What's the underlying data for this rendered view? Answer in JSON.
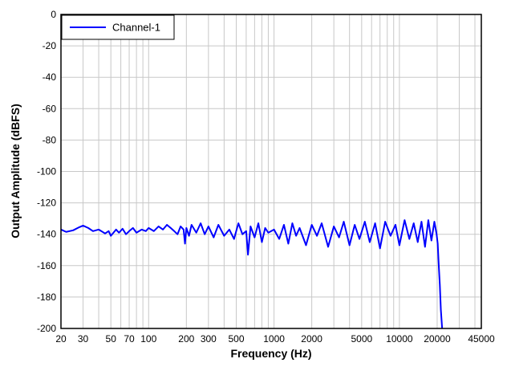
{
  "chart_data": {
    "type": "line",
    "xlabel": "Frequency (Hz)",
    "ylabel": "Output Amplitude (dBFS)",
    "x_scale": "log",
    "xlim": [
      20,
      45000
    ],
    "ylim": [
      -200,
      0
    ],
    "grid": true,
    "legend_position": "top-left",
    "x_tick_labels": [
      "20",
      "30",
      "50",
      "70",
      "100",
      "200",
      "300",
      "500",
      "1000",
      "2000",
      "5000",
      "10000",
      "20000",
      "45000"
    ],
    "y_tick_labels": [
      "0",
      "-20",
      "-40",
      "-60",
      "-80",
      "-100",
      "-120",
      "-140",
      "-160",
      "-180",
      "-200"
    ],
    "series": [
      {
        "name": "Channel-1",
        "color": "#0000ff",
        "x": [
          20,
          22,
          25,
          28,
          30,
          33,
          36,
          40,
          45,
          48,
          50,
          55,
          58,
          62,
          66,
          70,
          75,
          80,
          88,
          95,
          100,
          110,
          120,
          130,
          140,
          150,
          160,
          170,
          180,
          190,
          195,
          200,
          210,
          220,
          240,
          260,
          280,
          300,
          330,
          360,
          400,
          440,
          480,
          520,
          560,
          600,
          620,
          650,
          700,
          750,
          800,
          850,
          900,
          1000,
          1100,
          1200,
          1300,
          1400,
          1500,
          1600,
          1800,
          2000,
          2200,
          2400,
          2700,
          3000,
          3300,
          3600,
          4000,
          4400,
          4800,
          5300,
          5800,
          6400,
          7000,
          7700,
          8500,
          9300,
          10000,
          11000,
          12000,
          13000,
          14000,
          15000,
          16000,
          17000,
          18000,
          19000,
          19800,
          20200,
          20600,
          21000,
          21400,
          22000
        ],
        "y": [
          -137,
          -138.5,
          -137.5,
          -135.5,
          -134.5,
          -136,
          -138,
          -137,
          -139.5,
          -138,
          -141,
          -137,
          -139,
          -136.5,
          -140,
          -138,
          -136,
          -139,
          -137,
          -138,
          -136,
          -138,
          -135,
          -137,
          -134,
          -136,
          -138,
          -140,
          -135,
          -137,
          -146,
          -136,
          -141,
          -134,
          -139,
          -133,
          -140,
          -135,
          -142,
          -134,
          -141,
          -137,
          -143,
          -133,
          -140,
          -138,
          -153,
          -135,
          -142,
          -133,
          -145,
          -136,
          -139,
          -137,
          -143,
          -134,
          -146,
          -133,
          -141,
          -136,
          -147,
          -134,
          -141,
          -133,
          -148,
          -135,
          -142,
          -132,
          -147,
          -134,
          -143,
          -132,
          -145,
          -133,
          -149,
          -132,
          -141,
          -134,
          -147,
          -131,
          -143,
          -133,
          -145,
          -132,
          -148,
          -131,
          -144,
          -132,
          -140,
          -146,
          -160,
          -172,
          -188,
          -202
        ]
      }
    ]
  }
}
